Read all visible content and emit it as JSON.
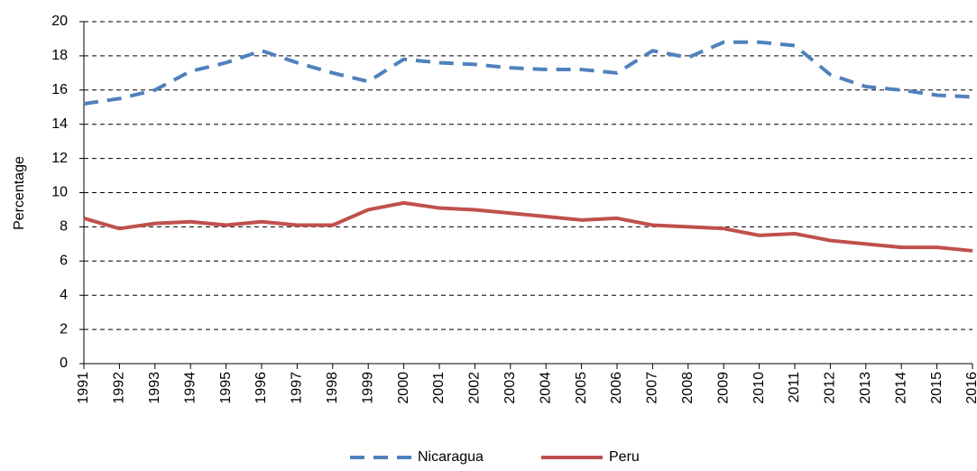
{
  "chart_data": {
    "type": "line",
    "y_label": "Percentage",
    "categories": [
      "1991",
      "1992",
      "1993",
      "1994",
      "1995",
      "1996",
      "1997",
      "1998",
      "1999",
      "2000",
      "2001",
      "2002",
      "2003",
      "2004",
      "2005",
      "2006",
      "2007",
      "2008",
      "2009",
      "2010",
      "2011",
      "2012",
      "2013",
      "2014",
      "2015",
      "2016"
    ],
    "series": [
      {
        "name": "Nicaragua",
        "color": "#4f81bd",
        "dashed": true,
        "values": [
          15.2,
          15.5,
          16.0,
          17.1,
          17.6,
          18.3,
          17.6,
          17.0,
          16.5,
          17.8,
          17.6,
          17.5,
          17.3,
          17.2,
          17.2,
          17.0,
          18.3,
          17.9,
          18.8,
          18.8,
          18.6,
          16.9,
          16.2,
          16.0,
          15.7,
          15.6
        ]
      },
      {
        "name": "Peru",
        "color": "#c0504d",
        "dashed": false,
        "values": [
          8.5,
          7.9,
          8.2,
          8.3,
          8.1,
          8.3,
          8.1,
          8.1,
          9.0,
          9.4,
          9.1,
          9.0,
          8.8,
          8.6,
          8.4,
          8.5,
          8.1,
          8.0,
          7.9,
          7.5,
          7.6,
          7.2,
          7.0,
          6.8,
          6.8,
          6.6
        ]
      }
    ],
    "ylim": [
      0,
      20
    ],
    "yticks": [
      0,
      2,
      4,
      6,
      8,
      10,
      12,
      14,
      16,
      18,
      20
    ],
    "grid": true,
    "legend": "bottom"
  }
}
